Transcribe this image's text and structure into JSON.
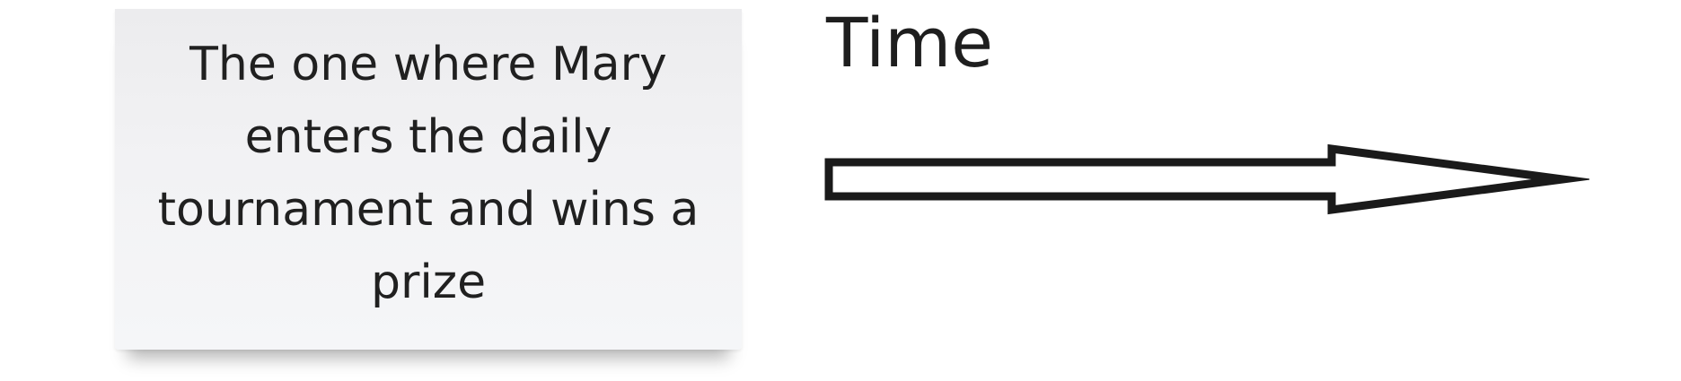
{
  "sticky_note": {
    "text": "The one where Mary\nenters the daily\ntournament and wins a\nprize",
    "background_color": "#f2f2f4"
  },
  "axis": {
    "label": "Time",
    "arrow_direction": "right",
    "arrow_style": "hollow-outline",
    "stroke_color": "#1a1a1a"
  }
}
